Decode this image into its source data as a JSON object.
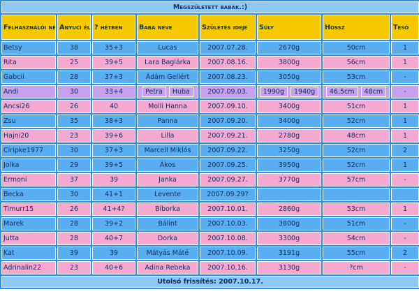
{
  "title": "Megszületett babák.:)",
  "headers": [
    "Felhasználói név",
    "Anyuci életkora",
    "? hétben",
    "Baba neve",
    "Születés ideje",
    "Súly",
    "Hossz",
    "Tesó"
  ],
  "rows": [
    {
      "color": "#58aef0",
      "cells": [
        "Betsy",
        "38",
        "35+3",
        "Lucas",
        "2007.07.28.",
        "2670g",
        "50cm",
        "1"
      ]
    },
    {
      "color": "#f5a9d0",
      "cells": [
        "Rita",
        "25",
        "39+5",
        "Lara Baglárka",
        "2007.08.16.",
        "3800g",
        "56cm",
        "1"
      ]
    },
    {
      "color": "#58aef0",
      "cells": [
        "Gabcii",
        "28",
        "37+3",
        "Ádám Gellért",
        "2007.08.23.",
        "3050g",
        "53cm",
        "-"
      ]
    },
    {
      "color": "#c8a0f0",
      "cells": [
        "Andi",
        "30",
        "33+4",
        [
          "Petra",
          "Huba"
        ],
        "2007.09.03.",
        [
          "1990g",
          "1940g"
        ],
        [
          "46,5cm",
          "48cm"
        ],
        "-"
      ]
    },
    {
      "color": "#f5a9d0",
      "cells": [
        "Ancsi26",
        "26",
        "40",
        "Molli Hanna",
        "2007.09.10.",
        "3400g",
        "51cm",
        "1"
      ]
    },
    {
      "color": "#58aef0",
      "cells": [
        "Zsu",
        "35",
        "38+3",
        "Panna",
        "2007.09.20.",
        "3400g",
        "52cm",
        "1"
      ]
    },
    {
      "color": "#f5a9d0",
      "cells": [
        "Hajni20",
        "23",
        "39+6",
        "Lilla",
        "2007.09.21.",
        "2780g",
        "48cm",
        "1"
      ]
    },
    {
      "color": "#58aef0",
      "cells": [
        "Ciripke1977",
        "30",
        "37+3",
        "Marcell Miklós",
        "2007.09.22.",
        "3250g",
        "52cm",
        "2"
      ]
    },
    {
      "color": "#58aef0",
      "cells": [
        "Jolka",
        "29",
        "39+5",
        "Ákos",
        "2007.09.25.",
        "3950g",
        "52cm",
        "1"
      ]
    },
    {
      "color": "#f5a9d0",
      "cells": [
        "Ermoni",
        "37",
        "39",
        "Janka",
        "2007.09.27.",
        "3770g",
        "57cm",
        "-"
      ]
    },
    {
      "color": "#58aef0",
      "cells": [
        "Becka",
        "30",
        "41+1",
        "Levente",
        "2007.09.29?",
        null,
        null,
        null
      ]
    },
    {
      "color": "#f5a9d0",
      "cells": [
        "Timurr15",
        "26",
        "41+4?",
        "Bíborka",
        "2007.10.01.",
        "2860g",
        "53cm",
        "1"
      ]
    },
    {
      "color": "#58aef0",
      "cells": [
        "Marek",
        "28",
        "39+2",
        "Bálint",
        "2007.10.03.",
        "3800g",
        "51cm",
        "-"
      ]
    },
    {
      "color": "#f5a9d0",
      "cells": [
        "Jutta",
        "28",
        "40+7",
        "Dorka",
        "2007.10.08.",
        "3300g",
        "54cm",
        "-"
      ]
    },
    {
      "color": "#58aef0",
      "cells": [
        "Kat",
        "39",
        "39",
        "Mátyás Máté",
        "2007.10.09.",
        "3191g",
        "55cm",
        "2"
      ]
    },
    {
      "color": "#f5a9d0",
      "cells": [
        "Adrinalin22",
        "23",
        "40+6",
        "Adina Rebeka",
        "2007.10.16.",
        "3130g",
        "?cm",
        "-"
      ]
    }
  ],
  "footer": "Utolsó frissítés: 2007.10.17."
}
